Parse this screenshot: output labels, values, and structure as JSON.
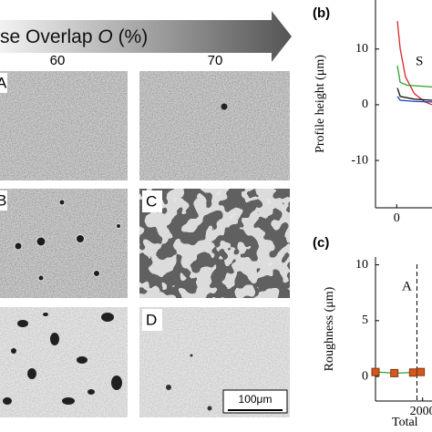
{
  "figure": {
    "arrow_label": [
      "se Overlap ",
      "O",
      " (%)"
    ],
    "columns": [
      "60",
      "70"
    ],
    "panel_labels": [
      "A",
      "B",
      "C",
      "D"
    ],
    "scale_bar": "100μm"
  },
  "chart_data": [
    {
      "type": "line",
      "panel": "(b)",
      "ylabel": "Profile height (μm)",
      "annotation": "S",
      "xlim": [
        -0.6,
        1.0
      ],
      "ylim": [
        -18.5,
        18.8
      ],
      "xticks": [
        0
      ],
      "yticks": [
        -10,
        0,
        10
      ],
      "series": [
        {
          "color": "#d62728",
          "x": [
            0.02,
            0.1,
            0.25,
            0.5,
            0.8,
            1.0
          ],
          "values": [
            15,
            10,
            5,
            2,
            0.5,
            0
          ]
        },
        {
          "color": "#2ca02c",
          "x": [
            0.02,
            0.1,
            0.3,
            1.0
          ],
          "values": [
            7,
            4,
            3.5,
            3.2
          ]
        },
        {
          "color": "#111111",
          "x": [
            0.02,
            0.1,
            0.5,
            1.0
          ],
          "values": [
            3,
            1.5,
            1,
            0.8
          ]
        },
        {
          "color": "#1f3fbf",
          "x": [
            0.02,
            0.1,
            0.5,
            1.0
          ],
          "values": [
            1.5,
            0.8,
            0.6,
            0.5
          ]
        }
      ]
    },
    {
      "type": "scatter",
      "panel": "(c)",
      "ylabel": "Roughness (μm)",
      "xlabel": "Total",
      "annotation": {
        "text": "A",
        "x": 1940
      },
      "xlim": [
        1500,
        2100
      ],
      "ylim": [
        -2.2,
        10.7
      ],
      "xticks": [
        2000
      ],
      "yticks": [
        0,
        5,
        10
      ],
      "series": [
        {
          "color": "#d9541e",
          "line_color": "#2ca02c",
          "x": [
            1500,
            1700,
            1900,
            1980
          ],
          "values": [
            0.4,
            0.3,
            0.35,
            0.4
          ]
        }
      ]
    }
  ]
}
